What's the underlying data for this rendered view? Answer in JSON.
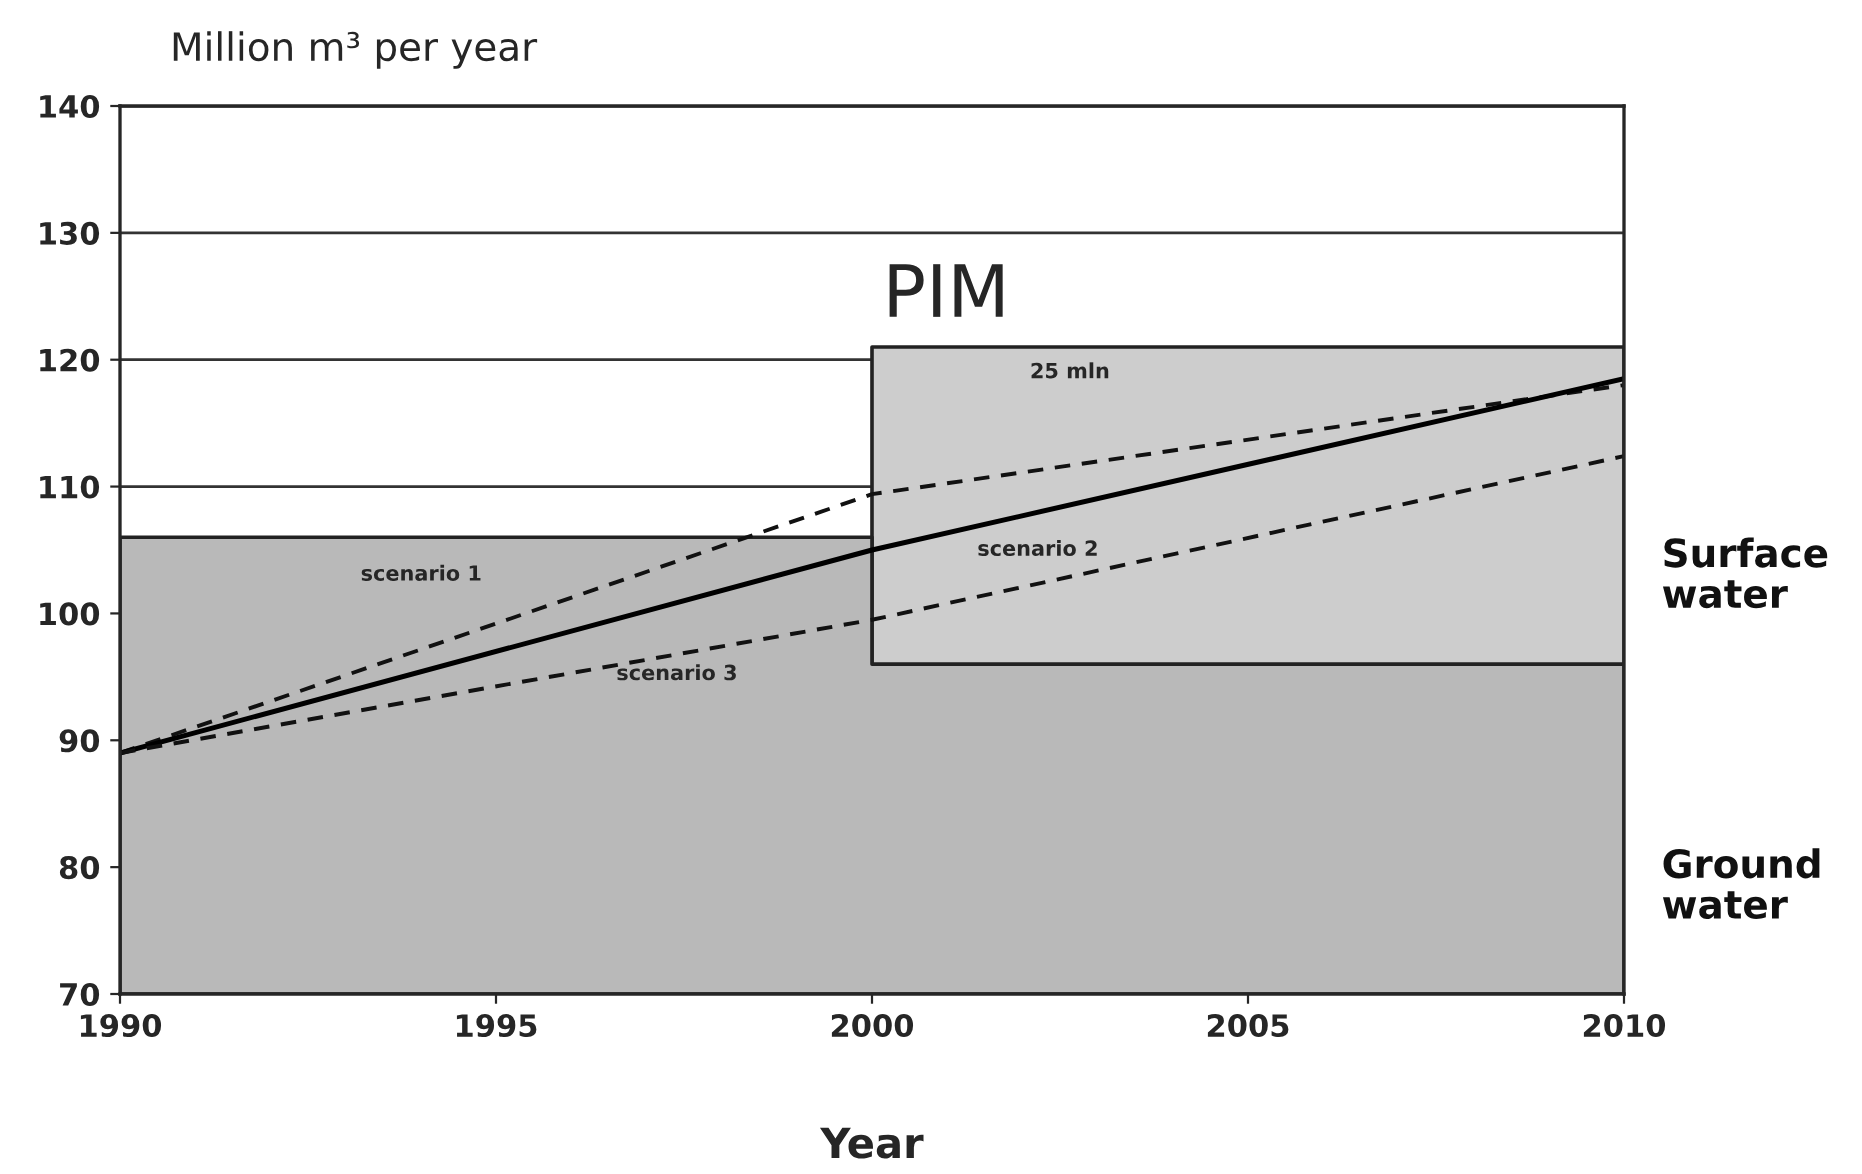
{
  "chart_data": {
    "type": "area",
    "ylabel": "Million m³ per year",
    "xlabel": "Year",
    "xlim": [
      1990,
      2010
    ],
    "xticks": [
      1990,
      1995,
      2000,
      2005,
      2010
    ],
    "ylim": [
      70,
      140
    ],
    "yticks": [
      70,
      80,
      90,
      100,
      110,
      120,
      130,
      140
    ],
    "grid": "y",
    "legend": false,
    "series": [
      {
        "color": "#cdcdcd",
        "x": [
          2000,
          2010
        ],
        "values": [
          121,
          121
        ]
      },
      {
        "color": "#b9b9b9",
        "x": [
          1990,
          2000,
          2000,
          2010
        ],
        "values": [
          106,
          106,
          96,
          96
        ]
      },
      {
        "type": "line",
        "color": "#111111",
        "line_style": "dashed",
        "x": [
          1990,
          2000,
          2010
        ],
        "values": [
          89,
          109.4,
          118
        ]
      },
      {
        "type": "line",
        "color": "#000000",
        "line_style": "solid",
        "x": [
          1990,
          2000,
          2010
        ],
        "values": [
          89,
          105,
          118.5
        ]
      },
      {
        "type": "line",
        "color": "#111111",
        "line_style": "dashed",
        "x": [
          1990,
          2000,
          2010
        ],
        "values": [
          89,
          99.5,
          112.4
        ]
      }
    ],
    "annotations": [
      "PIM",
      "25 mln",
      "scenario 1",
      "scenario 2",
      "scenario 3",
      "Surface water",
      "Ground water"
    ]
  }
}
